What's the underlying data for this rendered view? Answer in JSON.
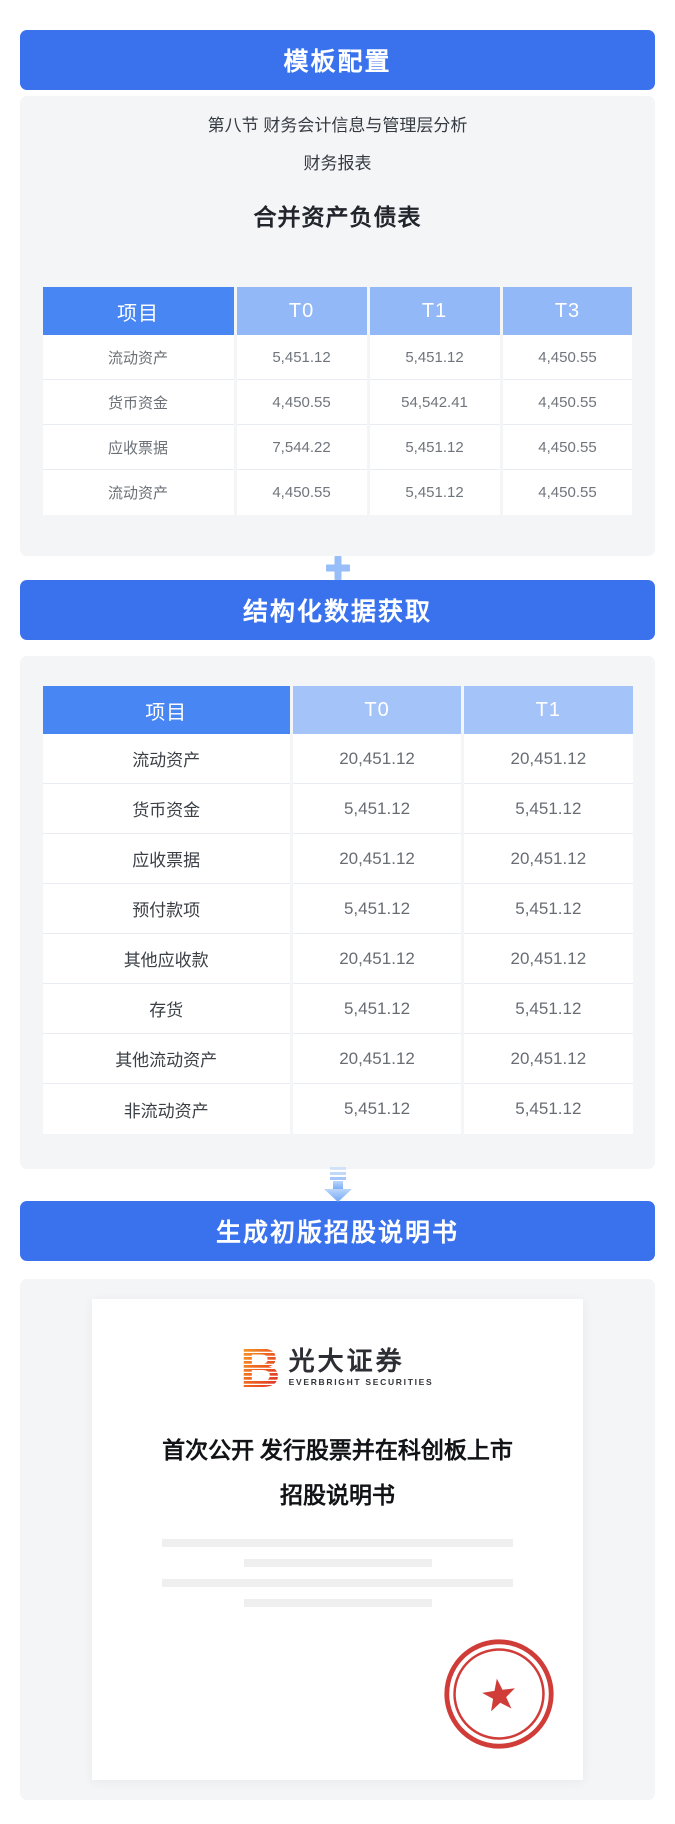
{
  "section_template": {
    "header_label": "模板配置",
    "chapter_line": "第八节 财务会计信息与管理层分析",
    "subtitle_line": "财务报表",
    "table_title": "合并资产负债表",
    "table": {
      "columns": [
        "项目",
        "T0",
        "T1",
        "T3"
      ],
      "rows": [
        [
          "流动资产",
          "5,451.12",
          "5,451.12",
          "4,450.55"
        ],
        [
          "货币资金",
          "4,450.55",
          "54,542.41",
          "4,450.55"
        ],
        [
          "应收票据",
          "7,544.22",
          "5,451.12",
          "4,450.55"
        ],
        [
          "流动资产",
          "4,450.55",
          "5,451.12",
          "4,450.55"
        ]
      ]
    }
  },
  "section_structured": {
    "header_label": "结构化数据获取",
    "table": {
      "columns": [
        "项目",
        "T0",
        "T1"
      ],
      "rows": [
        [
          "流动资产",
          "20,451.12",
          "20,451.12"
        ],
        [
          "货币资金",
          "5,451.12",
          "5,451.12"
        ],
        [
          "应收票据",
          "20,451.12",
          "20,451.12"
        ],
        [
          "预付款项",
          "5,451.12",
          "5,451.12"
        ],
        [
          "其他应收款",
          "20,451.12",
          "20,451.12"
        ],
        [
          "存货",
          "5,451.12",
          "5,451.12"
        ],
        [
          "其他流动资产",
          "20,451.12",
          "20,451.12"
        ],
        [
          "非流动资产",
          "5,451.12",
          "5,451.12"
        ]
      ]
    }
  },
  "section_prospectus": {
    "header_label": "生成初版招股说明书",
    "document": {
      "logo_name": "光大证券",
      "logo_subtitle": "EVERBRIGHT SECURITIES",
      "title_line1": "首次公开 发行股票并在科创板上市",
      "title_line2": "招股说明书"
    }
  },
  "icons": {
    "plus": "plus-icon",
    "arrow_down": "arrow-down-icon",
    "seal_star": "company-seal-star-icon",
    "logo_mark": "everbright-logo-mark-icon"
  },
  "colors": {
    "primary_blue": "#3a72ee",
    "table_header_dark_blue": "#4886f3",
    "table1_header_light_blue": "#93b8f7",
    "table2_header_light_blue": "#a4c3f8",
    "panel_gray": "#f4f5f7",
    "placeholder_gray": "#efefef",
    "seal_red": "#cd2f2b",
    "logo_gradient_start": "#f7a823",
    "logo_gradient_end": "#d5232a"
  }
}
